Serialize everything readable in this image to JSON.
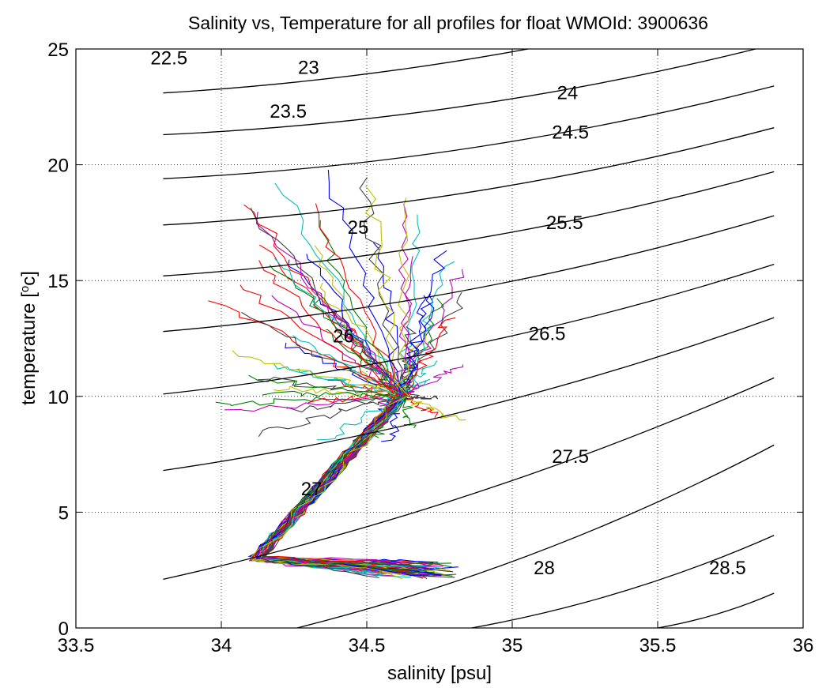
{
  "chart_data": {
    "type": "line",
    "title": "Salinity vs, Temperature for all profiles for float WMOId: 3900636",
    "xlabel": "salinity [psu]",
    "ylabel_main": "temperature [",
    "ylabel_sup": "o",
    "ylabel_tail": "c]",
    "xlim": [
      33.5,
      36
    ],
    "ylim": [
      0,
      25
    ],
    "xticks": [
      33.5,
      34,
      34.5,
      35,
      35.5,
      36
    ],
    "yticks": [
      0,
      5,
      10,
      15,
      20,
      25
    ],
    "xtick_labels": [
      "33.5",
      "34",
      "34.5",
      "35",
      "35.5",
      "36"
    ],
    "ytick_labels": [
      "0",
      "5",
      "10",
      "15",
      "20",
      "25"
    ],
    "grid": true,
    "grid_style": "dotted",
    "density_contours": [
      {
        "label": "22.5",
        "left": [
          33.8,
          23.1
        ],
        "right": [
          35.9,
          27.4
        ],
        "label_at": [
          33.82,
          24.6
        ]
      },
      {
        "label": "23",
        "left": [
          33.8,
          21.3
        ],
        "right": [
          35.9,
          25.2
        ],
        "label_at": [
          34.3,
          24.2
        ]
      },
      {
        "label": "23.5",
        "left": [
          33.8,
          19.4
        ],
        "right": [
          35.9,
          23.4
        ],
        "label_at": [
          34.23,
          22.3
        ]
      },
      {
        "label": "24",
        "left": [
          33.8,
          17.4
        ],
        "right": [
          35.9,
          21.6
        ],
        "label_at": [
          35.19,
          23.1
        ]
      },
      {
        "label": "24.5",
        "left": [
          33.8,
          15.2
        ],
        "right": [
          35.9,
          19.7
        ],
        "label_at": [
          35.2,
          21.4
        ]
      },
      {
        "label": "25",
        "left": [
          33.8,
          12.8
        ],
        "right": [
          35.9,
          17.8
        ],
        "label_at": [
          34.47,
          17.3
        ]
      },
      {
        "label": "25.5",
        "left": [
          33.8,
          10.1
        ],
        "right": [
          35.9,
          15.7
        ],
        "label_at": [
          35.18,
          17.5
        ]
      },
      {
        "label": "26",
        "left": [
          33.8,
          6.8
        ],
        "right": [
          35.9,
          13.4
        ],
        "label_at": [
          34.42,
          12.6
        ]
      },
      {
        "label": "26.5",
        "left": [
          33.8,
          2.1
        ],
        "right": [
          35.9,
          10.8
        ],
        "label_at": [
          35.12,
          12.7
        ]
      },
      {
        "label": "27",
        "left": [
          34.26,
          0
        ],
        "right": [
          35.9,
          7.9
        ],
        "label_at": [
          34.31,
          6.0
        ]
      },
      {
        "label": "27.5",
        "left": [
          34.86,
          0
        ],
        "right": [
          35.9,
          4.0
        ],
        "label_at": [
          35.2,
          7.4
        ]
      },
      {
        "label": "28",
        "left": [
          35.5,
          0
        ],
        "right": [
          35.9,
          1.5
        ],
        "label_at": [
          35.11,
          2.6
        ]
      },
      {
        "label": "28.5",
        "left": [
          35.9,
          0
        ],
        "right": [
          35.9,
          0
        ],
        "label_at": [
          35.74,
          2.6
        ]
      }
    ],
    "profile_colors": [
      "#0000ff",
      "#008000",
      "#ff0000",
      "#00bfbf",
      "#bf00bf",
      "#bfbf00",
      "#404040"
    ],
    "profile_count": 70
  }
}
